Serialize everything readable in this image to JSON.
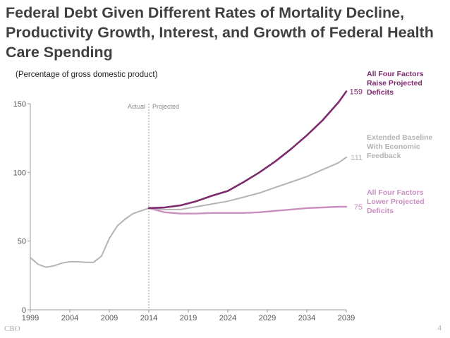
{
  "slide": {
    "title": "Federal Debt Given Different Rates of Mortality Decline, Productivity Growth, Interest, and Growth of Federal Health Care Spending",
    "subtitle": "(Percentage of gross domestic product)",
    "footer_source": "CBO",
    "page_number": "4"
  },
  "chart_data": {
    "type": "line",
    "title": "Federal Debt Given Different Rates of Mortality Decline, Productivity Growth, Interest, and Growth of Federal Health Care Spending",
    "ylabel": "Percentage of gross domestic product",
    "xlabel": "",
    "xlim": [
      1999,
      2039
    ],
    "ylim": [
      0,
      150
    ],
    "x_ticks": [
      1999,
      2004,
      2009,
      2014,
      2019,
      2024,
      2029,
      2034,
      2039
    ],
    "y_ticks": [
      0,
      50,
      100,
      150
    ],
    "grid": false,
    "divider": {
      "x": 2014,
      "left_label": "Actual",
      "right_label": "Projected"
    },
    "colors": {
      "high": "#7d2a6e",
      "baseline": "#b4b4b4",
      "low": "#c98fc1",
      "axis": "#999999",
      "divider": "#9a9a9a"
    },
    "series": [
      {
        "name": "Actual",
        "color_key": "baseline",
        "x": [
          1999,
          2000,
          2001,
          2002,
          2003,
          2004,
          2005,
          2006,
          2007,
          2008,
          2009,
          2010,
          2011,
          2012,
          2013,
          2014
        ],
        "values": [
          38,
          33,
          31,
          32,
          34,
          35,
          35,
          34.5,
          34.5,
          39,
          52,
          61,
          66,
          70,
          72,
          74
        ]
      },
      {
        "name": "All Four Factors Raise Projected Deficits",
        "label_lines": [
          "All Four Factors",
          "Raise Projected",
          "Deficits"
        ],
        "end_label": "159",
        "color_key": "high",
        "x": [
          2014,
          2016,
          2018,
          2020,
          2022,
          2024,
          2026,
          2028,
          2030,
          2032,
          2034,
          2036,
          2038,
          2039
        ],
        "values": [
          74,
          74.5,
          76,
          79,
          83,
          86.5,
          93,
          100,
          108,
          117,
          127,
          138,
          151,
          159
        ]
      },
      {
        "name": "Extended Baseline With Economic Feedback",
        "label_lines": [
          "Extended Baseline",
          "With Economic",
          "Feedback"
        ],
        "end_label": "111",
        "color_key": "baseline",
        "x": [
          2014,
          2016,
          2018,
          2020,
          2022,
          2024,
          2026,
          2028,
          2030,
          2032,
          2034,
          2036,
          2038,
          2039
        ],
        "values": [
          74,
          73,
          73,
          75,
          77,
          79,
          82,
          85,
          89,
          93,
          97,
          102,
          107,
          111
        ]
      },
      {
        "name": "All Four Factors Lower Projected Deficits",
        "label_lines": [
          "All Four Factors",
          "Lower Projected",
          "Deficits"
        ],
        "end_label": "75",
        "color_key": "low",
        "x": [
          2014,
          2016,
          2018,
          2020,
          2022,
          2024,
          2026,
          2028,
          2030,
          2032,
          2034,
          2036,
          2038,
          2039
        ],
        "values": [
          74,
          71,
          70,
          70,
          70.5,
          70.5,
          70.5,
          71,
          72,
          73,
          74,
          74.5,
          75,
          75
        ]
      }
    ]
  }
}
